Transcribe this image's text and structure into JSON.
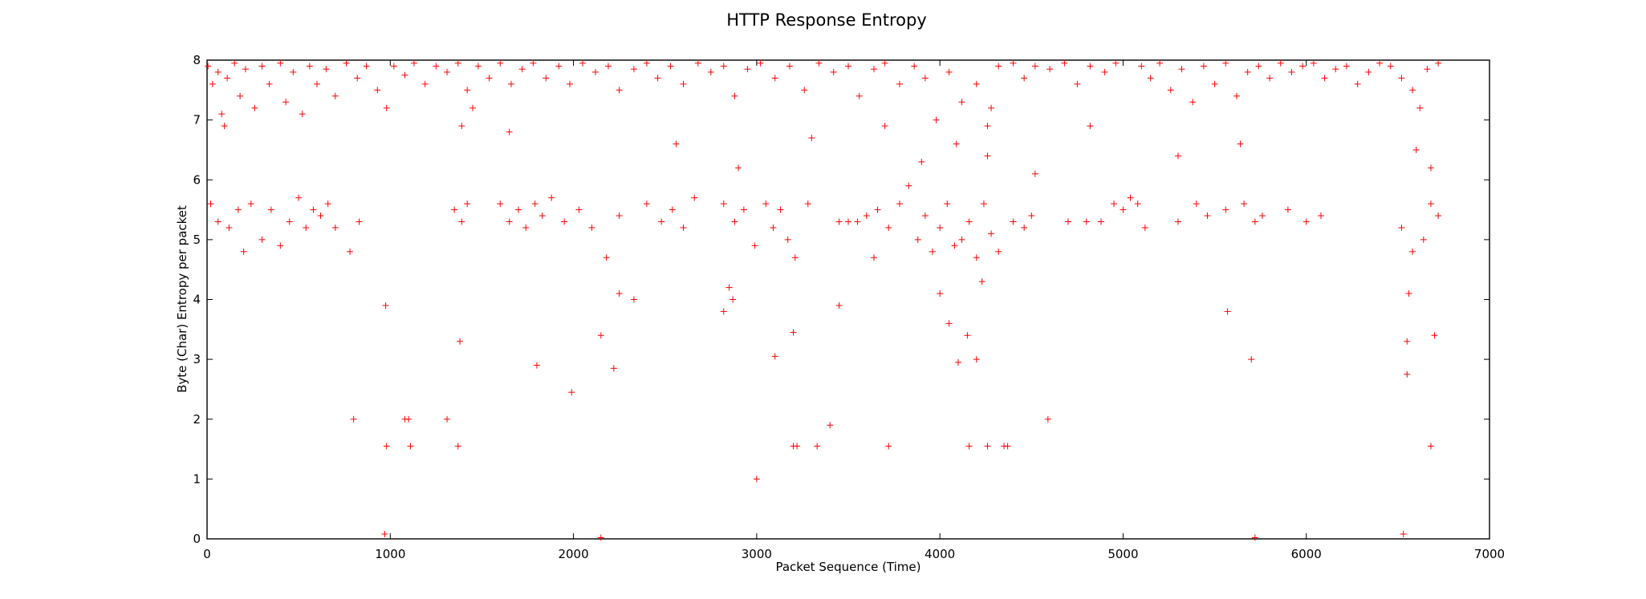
{
  "chart_data": {
    "type": "scatter",
    "title": "HTTP Response Entropy",
    "xlabel": "Packet Sequence (Time)",
    "ylabel": "Byte (Char) Entropy per packet",
    "xlim": [
      0,
      7000
    ],
    "ylim": [
      0,
      8
    ],
    "xticks": [
      0,
      1000,
      2000,
      3000,
      4000,
      5000,
      6000,
      7000
    ],
    "yticks": [
      0,
      1,
      2,
      3,
      4,
      5,
      6,
      7,
      8
    ],
    "grid": false,
    "legend": "none",
    "marker": "+",
    "color": "#ff0000",
    "series": [
      {
        "values_note": "",
        "points": [
          [
            5,
            7.9
          ],
          [
            30,
            7.6
          ],
          [
            60,
            7.8
          ],
          [
            80,
            7.1
          ],
          [
            95,
            6.9
          ],
          [
            110,
            7.7
          ],
          [
            150,
            7.95
          ],
          [
            180,
            7.4
          ],
          [
            210,
            7.85
          ],
          [
            260,
            7.2
          ],
          [
            300,
            7.9
          ],
          [
            340,
            7.6
          ],
          [
            400,
            7.95
          ],
          [
            430,
            7.3
          ],
          [
            470,
            7.8
          ],
          [
            520,
            7.1
          ],
          [
            560,
            7.9
          ],
          [
            600,
            7.6
          ],
          [
            650,
            7.85
          ],
          [
            700,
            7.4
          ],
          [
            760,
            7.95
          ],
          [
            820,
            7.7
          ],
          [
            870,
            7.9
          ],
          [
            930,
            7.5
          ],
          [
            980,
            7.2
          ],
          [
            1020,
            7.9
          ],
          [
            1080,
            7.75
          ],
          [
            1130,
            7.95
          ],
          [
            1190,
            7.6
          ],
          [
            1250,
            7.9
          ],
          [
            1310,
            7.8
          ],
          [
            1370,
            7.95
          ],
          [
            1420,
            7.5
          ],
          [
            1480,
            7.9
          ],
          [
            1540,
            7.7
          ],
          [
            1600,
            7.95
          ],
          [
            1660,
            7.6
          ],
          [
            1720,
            7.85
          ],
          [
            1780,
            7.95
          ],
          [
            1850,
            7.7
          ],
          [
            1920,
            7.9
          ],
          [
            1980,
            7.6
          ],
          [
            2050,
            7.95
          ],
          [
            2120,
            7.8
          ],
          [
            2190,
            7.9
          ],
          [
            2250,
            7.5
          ],
          [
            2330,
            7.85
          ],
          [
            2400,
            7.95
          ],
          [
            2460,
            7.7
          ],
          [
            2530,
            7.9
          ],
          [
            2600,
            7.6
          ],
          [
            2680,
            7.95
          ],
          [
            2750,
            7.8
          ],
          [
            2820,
            7.9
          ],
          [
            2880,
            7.4
          ],
          [
            2950,
            7.85
          ],
          [
            3020,
            7.95
          ],
          [
            3100,
            7.7
          ],
          [
            3180,
            7.9
          ],
          [
            3260,
            7.5
          ],
          [
            3340,
            7.95
          ],
          [
            3420,
            7.8
          ],
          [
            3500,
            7.9
          ],
          [
            3560,
            7.4
          ],
          [
            3640,
            7.85
          ],
          [
            3700,
            7.95
          ],
          [
            3780,
            7.6
          ],
          [
            3860,
            7.9
          ],
          [
            3920,
            7.7
          ],
          [
            3980,
            7.0
          ],
          [
            4050,
            7.8
          ],
          [
            4120,
            7.3
          ],
          [
            4200,
            7.6
          ],
          [
            4260,
            6.9
          ],
          [
            4280,
            7.2
          ],
          [
            4320,
            7.9
          ],
          [
            4400,
            7.95
          ],
          [
            4460,
            7.7
          ],
          [
            4520,
            7.9
          ],
          [
            4600,
            7.85
          ],
          [
            4680,
            7.95
          ],
          [
            4750,
            7.6
          ],
          [
            4820,
            7.9
          ],
          [
            4900,
            7.8
          ],
          [
            4960,
            7.95
          ],
          [
            5100,
            7.9
          ],
          [
            5150,
            7.7
          ],
          [
            5200,
            7.95
          ],
          [
            5260,
            7.5
          ],
          [
            5320,
            7.85
          ],
          [
            5380,
            7.3
          ],
          [
            5440,
            7.9
          ],
          [
            5500,
            7.6
          ],
          [
            5560,
            7.95
          ],
          [
            5620,
            7.4
          ],
          [
            5680,
            7.8
          ],
          [
            5740,
            7.9
          ],
          [
            5800,
            7.7
          ],
          [
            5860,
            7.95
          ],
          [
            5920,
            7.8
          ],
          [
            5980,
            7.9
          ],
          [
            6040,
            7.95
          ],
          [
            6100,
            7.7
          ],
          [
            6160,
            7.85
          ],
          [
            6220,
            7.9
          ],
          [
            6280,
            7.6
          ],
          [
            6340,
            7.8
          ],
          [
            6400,
            7.95
          ],
          [
            6460,
            7.9
          ],
          [
            6520,
            7.7
          ],
          [
            6580,
            7.5
          ],
          [
            6620,
            7.2
          ],
          [
            6660,
            7.85
          ],
          [
            6720,
            7.95
          ],
          [
            20,
            5.6
          ],
          [
            60,
            5.3
          ],
          [
            120,
            5.2
          ],
          [
            170,
            5.5
          ],
          [
            200,
            4.8
          ],
          [
            240,
            5.6
          ],
          [
            300,
            5.0
          ],
          [
            350,
            5.5
          ],
          [
            400,
            4.9
          ],
          [
            450,
            5.3
          ],
          [
            500,
            5.7
          ],
          [
            540,
            5.2
          ],
          [
            580,
            5.5
          ],
          [
            620,
            5.4
          ],
          [
            660,
            5.6
          ],
          [
            700,
            5.2
          ],
          [
            780,
            4.8
          ],
          [
            830,
            5.3
          ],
          [
            1350,
            5.5
          ],
          [
            1390,
            5.3
          ],
          [
            1420,
            5.6
          ],
          [
            1600,
            5.6
          ],
          [
            1650,
            5.3
          ],
          [
            1700,
            5.5
          ],
          [
            1740,
            5.2
          ],
          [
            1790,
            5.6
          ],
          [
            1830,
            5.4
          ],
          [
            1880,
            5.7
          ],
          [
            1950,
            5.3
          ],
          [
            2030,
            5.5
          ],
          [
            2100,
            5.2
          ],
          [
            2180,
            4.7
          ],
          [
            2250,
            5.4
          ],
          [
            2400,
            5.6
          ],
          [
            2480,
            5.3
          ],
          [
            2540,
            5.5
          ],
          [
            2600,
            5.2
          ],
          [
            2660,
            5.7
          ],
          [
            2820,
            5.6
          ],
          [
            2880,
            5.3
          ],
          [
            2930,
            5.5
          ],
          [
            2990,
            4.9
          ],
          [
            3050,
            5.6
          ],
          [
            3090,
            5.2
          ],
          [
            3130,
            5.5
          ],
          [
            3170,
            5.0
          ],
          [
            3210,
            4.7
          ],
          [
            3280,
            5.6
          ],
          [
            3450,
            5.3
          ],
          [
            3500,
            5.3
          ],
          [
            3550,
            5.3
          ],
          [
            3600,
            5.4
          ],
          [
            3660,
            5.5
          ],
          [
            3720,
            5.2
          ],
          [
            3780,
            5.6
          ],
          [
            3830,
            5.9
          ],
          [
            3880,
            5.0
          ],
          [
            3920,
            5.4
          ],
          [
            3960,
            4.8
          ],
          [
            4000,
            5.2
          ],
          [
            4040,
            5.6
          ],
          [
            4080,
            4.9
          ],
          [
            4120,
            5.0
          ],
          [
            4160,
            5.3
          ],
          [
            4200,
            4.7
          ],
          [
            4240,
            5.6
          ],
          [
            4280,
            5.1
          ],
          [
            4320,
            4.8
          ],
          [
            4400,
            5.3
          ],
          [
            4460,
            5.2
          ],
          [
            4500,
            5.4
          ],
          [
            4700,
            5.3
          ],
          [
            4800,
            5.3
          ],
          [
            4880,
            5.3
          ],
          [
            4950,
            5.6
          ],
          [
            5000,
            5.5
          ],
          [
            5040,
            5.7
          ],
          [
            5080,
            5.6
          ],
          [
            5120,
            5.2
          ],
          [
            5300,
            5.3
          ],
          [
            5400,
            5.6
          ],
          [
            5460,
            5.4
          ],
          [
            5560,
            5.5
          ],
          [
            5660,
            5.6
          ],
          [
            5720,
            5.3
          ],
          [
            5760,
            5.4
          ],
          [
            5900,
            5.5
          ],
          [
            6000,
            5.3
          ],
          [
            6080,
            5.4
          ],
          [
            6520,
            5.2
          ],
          [
            6580,
            4.8
          ],
          [
            6640,
            5.0
          ],
          [
            6680,
            5.6
          ],
          [
            6720,
            5.4
          ],
          [
            1390,
            6.9
          ],
          [
            1450,
            7.2
          ],
          [
            1650,
            6.8
          ],
          [
            2560,
            6.6
          ],
          [
            2900,
            6.2
          ],
          [
            3300,
            6.7
          ],
          [
            3700,
            6.9
          ],
          [
            3900,
            6.3
          ],
          [
            4090,
            6.6
          ],
          [
            4260,
            6.4
          ],
          [
            4520,
            6.1
          ],
          [
            4820,
            6.9
          ],
          [
            5300,
            6.4
          ],
          [
            5640,
            6.6
          ],
          [
            6600,
            6.5
          ],
          [
            6680,
            6.2
          ],
          [
            2850,
            4.2
          ],
          [
            2870,
            4.0
          ],
          [
            2820,
            3.8
          ],
          [
            3450,
            3.9
          ],
          [
            3640,
            4.7
          ],
          [
            4000,
            4.1
          ],
          [
            4050,
            3.6
          ],
          [
            4150,
            3.4
          ],
          [
            4200,
            3.0
          ],
          [
            4230,
            4.3
          ],
          [
            2250,
            4.1
          ],
          [
            2330,
            4.0
          ],
          [
            2150,
            3.4
          ],
          [
            5570,
            3.8
          ],
          [
            6560,
            4.1
          ],
          [
            6700,
            3.4
          ],
          [
            1380,
            3.3
          ],
          [
            975,
            3.9
          ],
          [
            2220,
            2.85
          ],
          [
            1800,
            2.9
          ],
          [
            3100,
            3.05
          ],
          [
            3200,
            3.45
          ],
          [
            5700,
            3.0
          ],
          [
            6550,
            3.3
          ],
          [
            6550,
            2.75
          ],
          [
            1990,
            2.45
          ],
          [
            4100,
            2.95
          ],
          [
            3400,
            1.9
          ],
          [
            800,
            2.0
          ],
          [
            1080,
            2.0
          ],
          [
            1100,
            2.0
          ],
          [
            1310,
            2.0
          ],
          [
            4590,
            2.0
          ],
          [
            980,
            1.55
          ],
          [
            1110,
            1.55
          ],
          [
            1370,
            1.55
          ],
          [
            3200,
            1.55
          ],
          [
            3220,
            1.55
          ],
          [
            3330,
            1.55
          ],
          [
            3720,
            1.55
          ],
          [
            4160,
            1.55
          ],
          [
            4260,
            1.55
          ],
          [
            4350,
            1.55
          ],
          [
            4370,
            1.55
          ],
          [
            6680,
            1.55
          ],
          [
            3000,
            1.0
          ],
          [
            970,
            0.08
          ],
          [
            2150,
            0.02
          ],
          [
            6530,
            0.08
          ],
          [
            5720,
            0.02
          ]
        ]
      }
    ]
  }
}
